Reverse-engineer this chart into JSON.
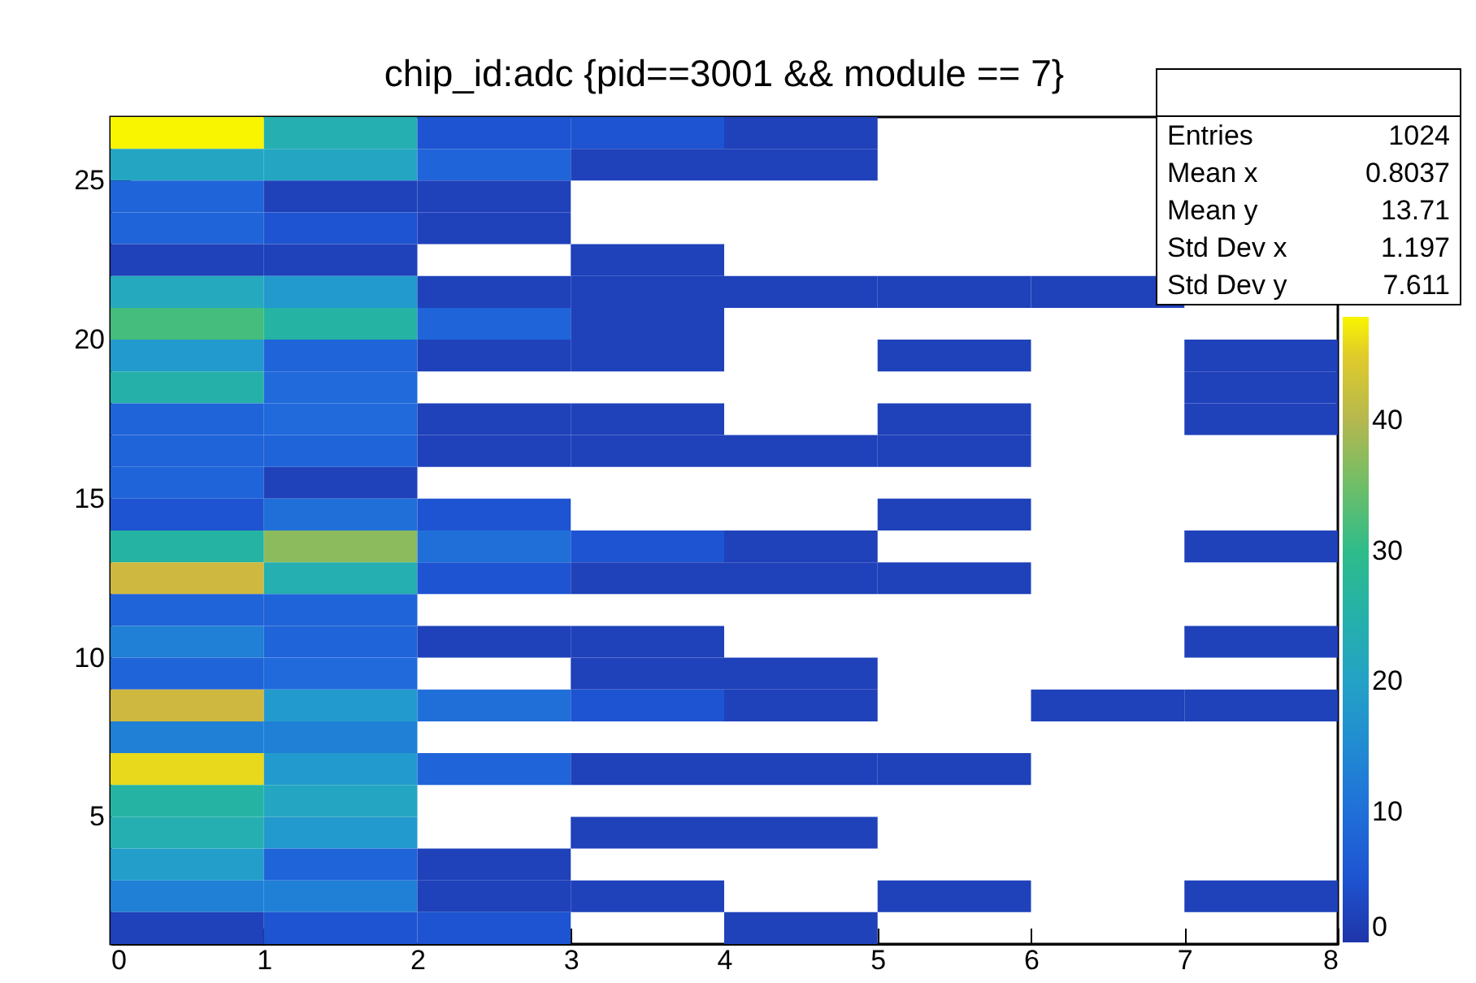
{
  "chart_data": {
    "type": "heatmap",
    "title": "chip_id:adc {pid==3001 && module == 7}",
    "xlim": [
      0,
      8
    ],
    "xticks": [
      0,
      1,
      2,
      3,
      4,
      5,
      6,
      7,
      8
    ],
    "ylim": [
      1,
      27
    ],
    "yticks": [
      5,
      10,
      15,
      20,
      25
    ],
    "clim": [
      0,
      48
    ],
    "cticks": [
      0,
      10,
      20,
      30,
      40
    ],
    "cells": [
      [
        48,
        24,
        5,
        5,
        2,
        null,
        null,
        null
      ],
      [
        21,
        21,
        8,
        2,
        2,
        null,
        null,
        null
      ],
      [
        8,
        2,
        2,
        null,
        null,
        null,
        null,
        null
      ],
      [
        8,
        5,
        2,
        null,
        null,
        null,
        null,
        null
      ],
      [
        2,
        2,
        null,
        2,
        null,
        null,
        null,
        null
      ],
      [
        22,
        18,
        2,
        2,
        2,
        2,
        2,
        null
      ],
      [
        32,
        26,
        8,
        2,
        null,
        null,
        null,
        null
      ],
      [
        18,
        8,
        2,
        2,
        null,
        2,
        null,
        2
      ],
      [
        25,
        9,
        null,
        null,
        null,
        null,
        null,
        2
      ],
      [
        8,
        9,
        2,
        2,
        null,
        2,
        null,
        2
      ],
      [
        8,
        8,
        2,
        2,
        2,
        2,
        null,
        null
      ],
      [
        8,
        2,
        null,
        null,
        null,
        null,
        null,
        null
      ],
      [
        5,
        10,
        5,
        null,
        null,
        2,
        null,
        null
      ],
      [
        26,
        37,
        10,
        5,
        2,
        null,
        null,
        2
      ],
      [
        43,
        24,
        5,
        2,
        2,
        2,
        null,
        null
      ],
      [
        8,
        8,
        null,
        null,
        null,
        null,
        null,
        null
      ],
      [
        13,
        8,
        2,
        2,
        null,
        null,
        null,
        2
      ],
      [
        8,
        9,
        null,
        2,
        2,
        null,
        null,
        null
      ],
      [
        43,
        18,
        10,
        5,
        2,
        null,
        2,
        2
      ],
      [
        13,
        13,
        null,
        null,
        null,
        null,
        null,
        null
      ],
      [
        46,
        18,
        8,
        2,
        2,
        2,
        null,
        null
      ],
      [
        26,
        21,
        null,
        null,
        null,
        null,
        null,
        null
      ],
      [
        24,
        18,
        null,
        2,
        2,
        null,
        null,
        null
      ],
      [
        19,
        8,
        2,
        null,
        null,
        null,
        null,
        null
      ],
      [
        13,
        13,
        2,
        2,
        null,
        2,
        null,
        2
      ],
      [
        2,
        5,
        5,
        null,
        2,
        null,
        null,
        null
      ]
    ],
    "annotations": [
      "Entries",
      "1024",
      "Mean x",
      "0.8037",
      "Mean y",
      "13.71",
      "Std Dev x",
      "1.197",
      "Std Dev y",
      "7.611"
    ]
  }
}
